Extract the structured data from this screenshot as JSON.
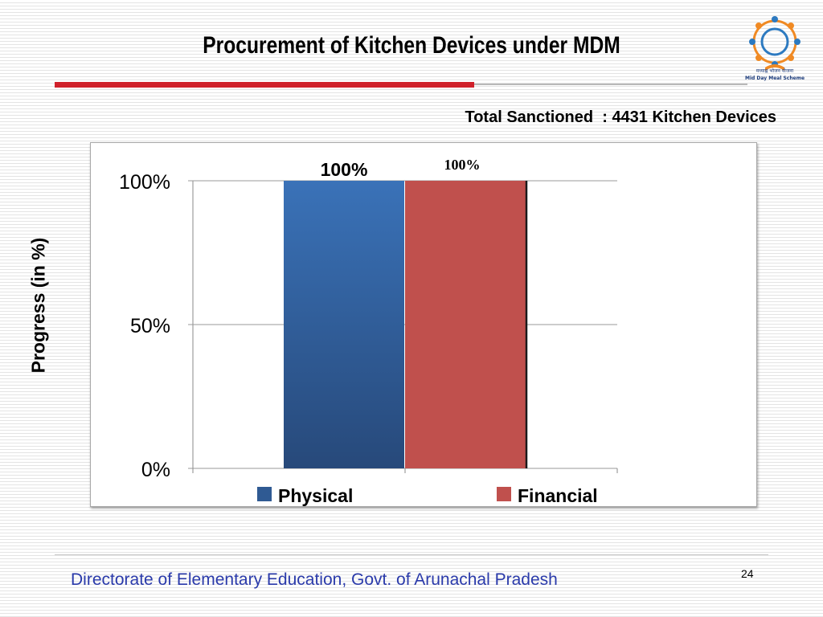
{
  "slide": {
    "title": "Procurement of Kitchen Devices under MDM",
    "sanctioned_text": "Total Sanctioned  : 4431 Kitchen Devices",
    "footer": "Directorate of Elementary Education, Govt. of Arunachal Pradesh",
    "page_number": "24",
    "logo": {
      "line1": "मध्याह्न भोजन योजना",
      "line2": "Mid Day Meal Scheme",
      "icon": "mdm-logo-icon"
    }
  },
  "chart_data": {
    "type": "bar",
    "categories": [
      "Physical",
      "Financial"
    ],
    "values": [
      100,
      100
    ],
    "data_labels": [
      "100%",
      "100%"
    ],
    "title": "",
    "xlabel": "",
    "ylabel": "Progress (in %)",
    "ylim": [
      0,
      100
    ],
    "y_ticks": [
      {
        "value": 0,
        "label": "0%"
      },
      {
        "value": 50,
        "label": "50%"
      },
      {
        "value": 100,
        "label": "100%"
      }
    ],
    "legend": {
      "placement": "bottom",
      "entries": [
        {
          "name": "Physical",
          "color": "#2f5a93"
        },
        {
          "name": "Financial",
          "color": "#c0504d"
        }
      ]
    },
    "grid": true,
    "colors": [
      "#2f5a93",
      "#c0504d"
    ]
  }
}
